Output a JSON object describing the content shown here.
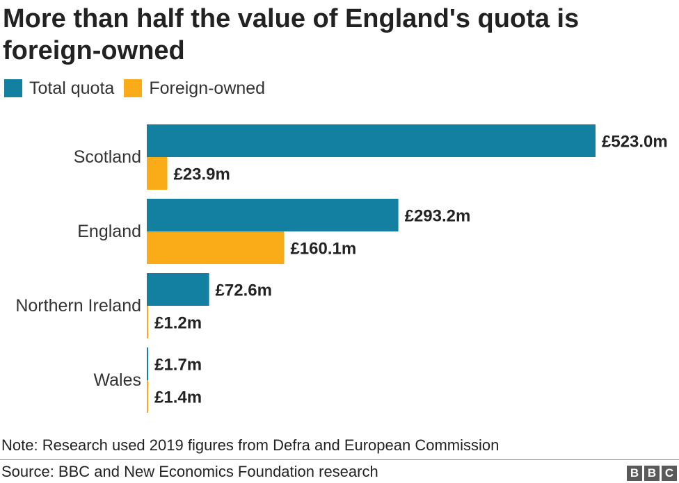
{
  "title": "More than half the value of England's quota is foreign-owned",
  "legend": [
    {
      "label": "Total quota",
      "color": "#1380A1"
    },
    {
      "label": "Foreign-owned",
      "color": "#FAAB18"
    }
  ],
  "note": "Note: Research used 2019 figures from Defra and European Commission",
  "source": "Source: BBC and New Economics Foundation research",
  "logo": [
    "B",
    "B",
    "C"
  ],
  "chart_data": {
    "type": "bar",
    "orientation": "horizontal",
    "categories": [
      "Scotland",
      "England",
      "Northern Ireland",
      "Wales"
    ],
    "series": [
      {
        "name": "Total quota",
        "color": "#1380A1",
        "values": [
          523.0,
          293.2,
          72.6,
          1.7
        ],
        "labels": [
          "£523.0m",
          "£293.2m",
          "£72.6m",
          "£1.7m"
        ]
      },
      {
        "name": "Foreign-owned",
        "color": "#FAAB18",
        "values": [
          23.9,
          160.1,
          1.2,
          1.4
        ],
        "labels": [
          "£23.9m",
          "£160.1m",
          "£1.2m",
          "£1.4m"
        ]
      }
    ],
    "xlim": [
      0,
      523.0
    ],
    "grid": false,
    "legend_position": "top-left"
  }
}
